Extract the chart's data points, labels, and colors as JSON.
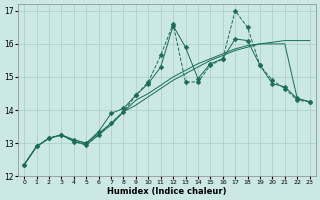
{
  "xlabel": "Humidex (Indice chaleur)",
  "ylabel": "",
  "xlim": [
    -0.5,
    23.5
  ],
  "ylim": [
    12,
    17.2
  ],
  "xticks": [
    0,
    1,
    2,
    3,
    4,
    5,
    6,
    7,
    8,
    9,
    10,
    11,
    12,
    13,
    14,
    15,
    16,
    17,
    18,
    19,
    20,
    21,
    22,
    23
  ],
  "yticks": [
    12,
    13,
    14,
    15,
    16,
    17
  ],
  "background_color": "#cce8e4",
  "grid_color": "#aaccca",
  "line_color": "#1a6b5a",
  "series": [
    {
      "x": [
        0,
        1,
        2,
        3,
        4,
        5,
        6,
        7,
        8,
        9,
        10,
        11,
        12,
        13,
        14,
        15,
        16,
        17,
        18,
        19,
        20,
        21,
        22,
        23
      ],
      "y": [
        12.35,
        12.9,
        13.15,
        13.25,
        13.05,
        12.95,
        13.25,
        13.6,
        13.95,
        14.45,
        14.85,
        15.65,
        16.6,
        14.85,
        14.85,
        15.35,
        15.55,
        17.0,
        16.5,
        15.35,
        14.9,
        14.65,
        14.3,
        14.25
      ],
      "marker": "D",
      "markersize": 2.5,
      "linestyle": "--"
    },
    {
      "x": [
        0,
        1,
        2,
        3,
        4,
        5,
        6,
        7,
        8,
        9,
        10,
        11,
        12,
        13,
        14,
        15,
        16,
        17,
        18,
        19,
        20,
        21,
        22,
        23
      ],
      "y": [
        12.35,
        12.9,
        13.15,
        13.25,
        13.1,
        13.0,
        13.35,
        13.9,
        14.05,
        14.45,
        14.8,
        15.3,
        16.55,
        15.9,
        14.95,
        15.4,
        15.55,
        16.15,
        16.1,
        15.35,
        14.8,
        14.7,
        14.35,
        14.25
      ],
      "marker": "D",
      "markersize": 2.5,
      "linestyle": "-"
    },
    {
      "x": [
        0,
        1,
        2,
        3,
        4,
        5,
        6,
        7,
        8,
        9,
        10,
        11,
        12,
        13,
        14,
        15,
        16,
        17,
        18,
        19,
        20,
        21,
        22,
        23
      ],
      "y": [
        12.35,
        12.9,
        13.15,
        13.25,
        13.1,
        13.0,
        13.3,
        13.6,
        13.95,
        14.15,
        14.4,
        14.65,
        14.9,
        15.1,
        15.3,
        15.5,
        15.65,
        15.8,
        15.9,
        16.0,
        16.05,
        16.1,
        16.1,
        16.1
      ],
      "marker": null,
      "markersize": 0,
      "linestyle": "-"
    },
    {
      "x": [
        0,
        1,
        2,
        3,
        4,
        5,
        6,
        7,
        8,
        9,
        10,
        11,
        12,
        13,
        14,
        15,
        16,
        17,
        18,
        19,
        20,
        21,
        22,
        23
      ],
      "y": [
        12.35,
        12.9,
        13.15,
        13.25,
        13.05,
        12.95,
        13.25,
        13.55,
        13.95,
        14.3,
        14.5,
        14.75,
        15.0,
        15.2,
        15.4,
        15.55,
        15.7,
        15.85,
        15.95,
        16.0,
        16.0,
        16.0,
        14.35,
        14.25
      ],
      "marker": null,
      "markersize": 0,
      "linestyle": "-"
    }
  ]
}
